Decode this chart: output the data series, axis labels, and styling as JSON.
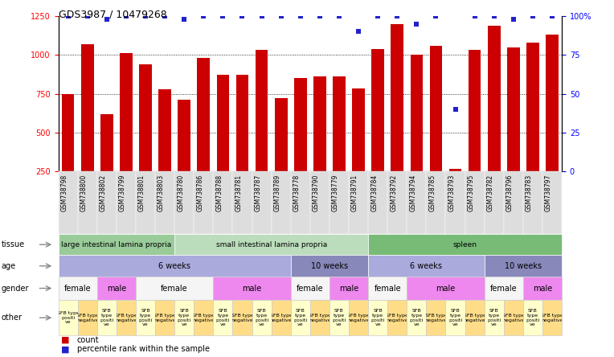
{
  "title": "GDS3987 / 10479268",
  "samples": [
    "GSM738798",
    "GSM738800",
    "GSM738802",
    "GSM738799",
    "GSM738801",
    "GSM738803",
    "GSM738780",
    "GSM738786",
    "GSM738788",
    "GSM738781",
    "GSM738787",
    "GSM738789",
    "GSM738778",
    "GSM738790",
    "GSM738779",
    "GSM738791",
    "GSM738784",
    "GSM738792",
    "GSM738794",
    "GSM738785",
    "GSM738793",
    "GSM738795",
    "GSM738782",
    "GSM738796",
    "GSM738783",
    "GSM738797"
  ],
  "counts": [
    750,
    1070,
    620,
    1010,
    940,
    780,
    710,
    980,
    870,
    870,
    1030,
    720,
    850,
    860,
    860,
    785,
    1040,
    1200,
    1000,
    1060,
    265,
    1030,
    1190,
    1050,
    1080,
    1130
  ],
  "percentiles": [
    100,
    100,
    98,
    100,
    100,
    100,
    98,
    100,
    100,
    100,
    100,
    100,
    100,
    100,
    100,
    90,
    100,
    100,
    95,
    100,
    40,
    100,
    100,
    98,
    100,
    100
  ],
  "ylim_left": [
    250,
    1250
  ],
  "ylim_right": [
    0,
    100
  ],
  "yticks_left": [
    250,
    500,
    750,
    1000,
    1250
  ],
  "yticks_right": [
    0,
    25,
    50,
    75,
    100
  ],
  "bar_color": "#cc0000",
  "dot_color": "#2222cc",
  "tissue_groups": [
    {
      "label": "large intestinal lamina propria",
      "start": 0,
      "end": 5,
      "color": "#99cc99"
    },
    {
      "label": "small intestinal lamina propria",
      "start": 6,
      "end": 15,
      "color": "#bbddbb"
    },
    {
      "label": "spleen",
      "start": 16,
      "end": 25,
      "color": "#77bb77"
    }
  ],
  "age_groups": [
    {
      "label": "6 weeks",
      "start": 0,
      "end": 11,
      "color": "#aaaadd"
    },
    {
      "label": "10 weeks",
      "start": 12,
      "end": 15,
      "color": "#8888bb"
    },
    {
      "label": "6 weeks",
      "start": 16,
      "end": 21,
      "color": "#aaaadd"
    },
    {
      "label": "10 weeks",
      "start": 22,
      "end": 25,
      "color": "#8888bb"
    }
  ],
  "gender_groups": [
    {
      "label": "female",
      "start": 0,
      "end": 1,
      "color": "#f5f5f5"
    },
    {
      "label": "male",
      "start": 2,
      "end": 3,
      "color": "#ee88ee"
    },
    {
      "label": "female",
      "start": 4,
      "end": 7,
      "color": "#f5f5f5"
    },
    {
      "label": "male",
      "start": 8,
      "end": 11,
      "color": "#ee88ee"
    },
    {
      "label": "female",
      "start": 12,
      "end": 13,
      "color": "#f5f5f5"
    },
    {
      "label": "male",
      "start": 14,
      "end": 15,
      "color": "#ee88ee"
    },
    {
      "label": "female",
      "start": 16,
      "end": 17,
      "color": "#f5f5f5"
    },
    {
      "label": "male",
      "start": 18,
      "end": 21,
      "color": "#ee88ee"
    },
    {
      "label": "female",
      "start": 22,
      "end": 23,
      "color": "#f5f5f5"
    },
    {
      "label": "male",
      "start": 24,
      "end": 25,
      "color": "#ee88ee"
    }
  ],
  "other_groups": [
    {
      "label": "SFB type\npositi\nve",
      "start": 0,
      "end": 0,
      "color": "#ffffcc"
    },
    {
      "label": "SFB type\nnegative",
      "start": 1,
      "end": 1,
      "color": "#ffdd88"
    },
    {
      "label": "SFB\ntype\npositi\nve",
      "start": 2,
      "end": 2,
      "color": "#ffffcc"
    },
    {
      "label": "SFB type\nnegative",
      "start": 3,
      "end": 3,
      "color": "#ffdd88"
    },
    {
      "label": "SFB\ntype\npositi\nve",
      "start": 4,
      "end": 4,
      "color": "#ffffcc"
    },
    {
      "label": "SFB type\nnegative",
      "start": 5,
      "end": 5,
      "color": "#ffdd88"
    },
    {
      "label": "SFB\ntype\npositi\nve",
      "start": 6,
      "end": 6,
      "color": "#ffffcc"
    },
    {
      "label": "SFB type\nnegative",
      "start": 7,
      "end": 7,
      "color": "#ffdd88"
    },
    {
      "label": "SFB\ntype\npositi\nve",
      "start": 8,
      "end": 8,
      "color": "#ffffcc"
    },
    {
      "label": "SFB type\nnegative",
      "start": 9,
      "end": 9,
      "color": "#ffdd88"
    },
    {
      "label": "SFB\ntype\npositi\nve",
      "start": 10,
      "end": 10,
      "color": "#ffffcc"
    },
    {
      "label": "SFB type\nnegative",
      "start": 11,
      "end": 11,
      "color": "#ffdd88"
    },
    {
      "label": "SFB\ntype\npositi\nve",
      "start": 12,
      "end": 12,
      "color": "#ffffcc"
    },
    {
      "label": "SFB type\nnegative",
      "start": 13,
      "end": 13,
      "color": "#ffdd88"
    },
    {
      "label": "SFB\ntype\npositi\nve",
      "start": 14,
      "end": 14,
      "color": "#ffffcc"
    },
    {
      "label": "SFB type\nnegative",
      "start": 15,
      "end": 15,
      "color": "#ffdd88"
    },
    {
      "label": "SFB\ntype\npositi\nve",
      "start": 16,
      "end": 16,
      "color": "#ffffcc"
    },
    {
      "label": "SFB type\nnegative",
      "start": 17,
      "end": 17,
      "color": "#ffdd88"
    },
    {
      "label": "SFB\ntype\npositi\nve",
      "start": 18,
      "end": 18,
      "color": "#ffffcc"
    },
    {
      "label": "SFB type\nnegative",
      "start": 19,
      "end": 19,
      "color": "#ffdd88"
    },
    {
      "label": "SFB\ntype\npositi\nve",
      "start": 20,
      "end": 20,
      "color": "#ffffcc"
    },
    {
      "label": "SFB type\nnegative",
      "start": 21,
      "end": 21,
      "color": "#ffdd88"
    },
    {
      "label": "SFB\ntype\npositi\nve",
      "start": 22,
      "end": 22,
      "color": "#ffffcc"
    },
    {
      "label": "SFB type\nnegative",
      "start": 23,
      "end": 23,
      "color": "#ffdd88"
    },
    {
      "label": "SFB\ntype\npositi\nve",
      "start": 24,
      "end": 24,
      "color": "#ffffcc"
    },
    {
      "label": "SFB type\nnegative",
      "start": 25,
      "end": 25,
      "color": "#ffdd88"
    }
  ]
}
